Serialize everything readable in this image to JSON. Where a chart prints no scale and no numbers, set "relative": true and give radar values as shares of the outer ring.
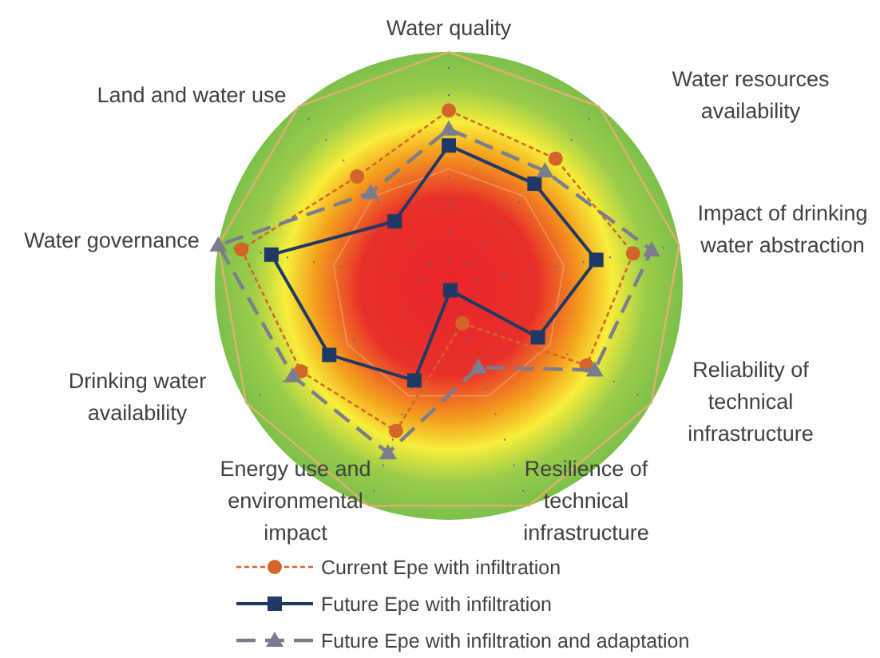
{
  "chart_data": {
    "type": "radar",
    "relative": true,
    "grid": true,
    "legend": "bottom",
    "categories": [
      "Water quality",
      "Water resources availability",
      "Impact of drinking water abstraction",
      "Reliability of technical infrastructure",
      "Resilience of technical infrastructure",
      "Energy use and environmental impact",
      "Drinking water availability",
      "Water governance",
      "Land and water use"
    ],
    "series": [
      {
        "name": "Current Epe with infiltration",
        "color": "#d4652a",
        "marker": "circle",
        "line_style": "dotted",
        "values": [
          0.75,
          0.71,
          0.8,
          0.68,
          0.17,
          0.66,
          0.73,
          0.9,
          0.61
        ]
      },
      {
        "name": "Future Epe with infiltration",
        "color": "#1f3864",
        "marker": "square",
        "line_style": "solid",
        "values": [
          0.6,
          0.57,
          0.64,
          0.44,
          0.02,
          0.43,
          0.59,
          0.77,
          0.36
        ]
      },
      {
        "name": "Future Epe with infiltration and adaptation",
        "color": "#7a7d8c",
        "marker": "triangle",
        "line_style": "dashed",
        "values": [
          0.67,
          0.64,
          0.88,
          0.72,
          0.37,
          0.76,
          0.77,
          1,
          0.52
        ]
      }
    ]
  }
}
